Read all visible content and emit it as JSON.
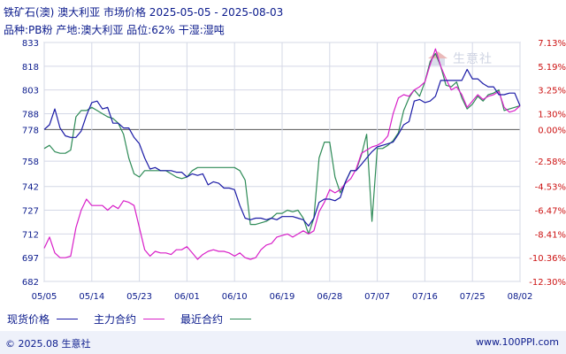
{
  "header": {
    "title": "铁矿石(澳) 澳大利亚 市场价格 2025-05-05 - 2025-08-03",
    "subtitle": "品种:PB粉 产地:澳大利亚 品位:62% 干湿:湿吨"
  },
  "watermark": {
    "text": "生意社"
  },
  "footer": {
    "copyright": "© 2025.08 生意社",
    "url": "www.100PPI.com"
  },
  "legend": [
    {
      "label": "现货价格",
      "color": "#1a1aa6"
    },
    {
      "label": "主力合约",
      "color": "#d81ec8"
    },
    {
      "label": "最近合约",
      "color": "#2e8b57"
    }
  ],
  "chart_data": {
    "type": "line",
    "x_ticks": [
      "05/05",
      "05/14",
      "05/23",
      "06/01",
      "06/10",
      "06/19",
      "06/28",
      "07/07",
      "07/16",
      "07/25",
      "08/02"
    ],
    "y_left_ticks": [
      833,
      818,
      803,
      788,
      778,
      758,
      742,
      727,
      712,
      697,
      682
    ],
    "y_left_range": [
      682,
      833
    ],
    "y_right_ticks": [
      "7.13%",
      "5.19%",
      "3.25%",
      "1.30%",
      "0.00%",
      "-2.58%",
      "-4.53%",
      "-6.47%",
      "-8.41%",
      "-10.36%",
      "-12.30%"
    ],
    "reference_value": 778,
    "grid": true,
    "series": [
      {
        "name": "现货价格",
        "color": "#1a1aa6",
        "x": [
          0,
          1,
          2,
          3,
          4,
          5,
          6,
          7,
          8,
          9,
          10,
          11,
          12,
          13,
          14,
          15,
          16,
          17,
          18,
          19,
          20,
          21,
          22,
          23,
          24,
          25,
          26,
          27,
          28,
          29,
          30,
          31,
          32,
          33,
          34,
          35,
          36,
          37,
          38,
          39,
          40,
          41,
          42,
          43,
          44,
          45,
          46,
          47,
          48,
          49,
          50,
          51,
          52,
          53,
          54,
          55,
          56,
          57,
          58,
          59,
          60,
          61,
          62,
          63,
          64,
          65,
          66,
          67,
          68,
          69,
          70,
          71,
          72,
          73,
          74,
          75,
          76,
          77,
          78,
          79,
          80,
          81,
          82,
          83,
          84,
          85,
          86,
          87,
          88,
          89,
          90
        ],
        "values": [
          778,
          781,
          791,
          779,
          774,
          773,
          773,
          777,
          787,
          795,
          796,
          791,
          792,
          782,
          782,
          779,
          779,
          773,
          769,
          760,
          753,
          754,
          752,
          752,
          752,
          751,
          751,
          748,
          750,
          749,
          750,
          743,
          745,
          744,
          741,
          741,
          740,
          730,
          722,
          721,
          722,
          722,
          721,
          722,
          721,
          723,
          723,
          723,
          722,
          721,
          717,
          722,
          732,
          734,
          734,
          733,
          735,
          745,
          752,
          752,
          756,
          760,
          764,
          767,
          768,
          769,
          770,
          775,
          781,
          783,
          796,
          797,
          795,
          796,
          799,
          809,
          809,
          809,
          809,
          809,
          816,
          810,
          810,
          807,
          805,
          805,
          800,
          800,
          801,
          801,
          793
        ]
      },
      {
        "name": "主力合约",
        "color": "#d81ec8",
        "x": [
          0,
          1,
          2,
          3,
          4,
          5,
          6,
          7,
          8,
          9,
          10,
          11,
          12,
          13,
          14,
          15,
          16,
          17,
          18,
          19,
          20,
          21,
          22,
          23,
          24,
          25,
          26,
          27,
          28,
          29,
          30,
          31,
          32,
          33,
          34,
          35,
          36,
          37,
          38,
          39,
          40,
          41,
          42,
          43,
          44,
          45,
          46,
          47,
          48,
          49,
          50,
          51,
          52,
          53,
          54,
          55,
          56,
          57,
          58,
          59,
          60,
          61,
          62,
          63,
          64,
          65,
          66,
          67,
          68,
          69,
          70,
          71,
          72,
          73,
          74,
          75,
          76,
          77,
          78,
          79,
          80,
          81,
          82,
          83,
          84,
          85,
          86,
          87,
          88,
          89,
          90
        ],
        "values": [
          703,
          710,
          700,
          697,
          697,
          698,
          716,
          727,
          734,
          730,
          730,
          730,
          727,
          730,
          728,
          733,
          732,
          730,
          716,
          702,
          698,
          701,
          700,
          700,
          699,
          702,
          702,
          704,
          700,
          696,
          699,
          701,
          702,
          701,
          701,
          700,
          698,
          700,
          697,
          696,
          697,
          702,
          705,
          706,
          710,
          711,
          712,
          710,
          712,
          714,
          712,
          714,
          726,
          732,
          740,
          738,
          740,
          744,
          747,
          753,
          763,
          765,
          767,
          768,
          770,
          774,
          788,
          798,
          800,
          799,
          803,
          805,
          808,
          819,
          829,
          818,
          810,
          803,
          805,
          800,
          792,
          796,
          800,
          797,
          799,
          800,
          802,
          792,
          789,
          790,
          793
        ]
      },
      {
        "name": "最近合约",
        "color": "#2e8b57",
        "x": [
          0,
          1,
          2,
          3,
          4,
          5,
          6,
          7,
          8,
          9,
          10,
          11,
          12,
          13,
          14,
          15,
          16,
          17,
          18,
          19,
          20,
          21,
          22,
          23,
          24,
          25,
          26,
          27,
          28,
          29,
          30,
          31,
          32,
          33,
          34,
          35,
          36,
          37,
          38,
          39,
          40,
          41,
          42,
          43,
          44,
          45,
          46,
          47,
          48,
          49,
          50,
          51,
          52,
          53,
          54,
          55,
          56,
          57,
          58,
          59,
          60,
          61,
          62,
          63,
          64,
          65,
          66,
          67,
          68,
          69,
          70,
          71,
          72,
          73,
          74,
          75,
          76,
          77,
          78,
          79,
          80,
          81,
          82,
          83,
          84,
          85,
          86,
          87,
          88,
          89,
          90
        ],
        "values": [
          766,
          768,
          764,
          763,
          763,
          765,
          786,
          790,
          790,
          792,
          790,
          788,
          786,
          785,
          782,
          775,
          760,
          750,
          748,
          752,
          752,
          752,
          752,
          752,
          750,
          748,
          747,
          748,
          752,
          754,
          754,
          754,
          754,
          754,
          754,
          754,
          754,
          752,
          746,
          718,
          718,
          719,
          720,
          722,
          725,
          725,
          727,
          726,
          727,
          722,
          712,
          722,
          760,
          770,
          770,
          748,
          738,
          745,
          752,
          752,
          762,
          775,
          720,
          766,
          766,
          768,
          771,
          776,
          790,
          798,
          803,
          799,
          808,
          821,
          826,
          818,
          806,
          805,
          808,
          798,
          791,
          794,
          799,
          796,
          800,
          801,
          803,
          790,
          791,
          792,
          793
        ]
      }
    ]
  }
}
